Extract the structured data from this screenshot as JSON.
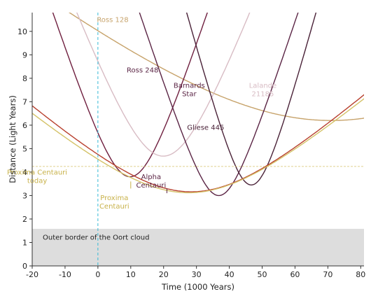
{
  "chart_data": {
    "type": "line",
    "title": "",
    "xlabel": "Time (1000 Years)",
    "ylabel": "Distance (Light Years)",
    "xlim": [
      -20,
      81
    ],
    "ylim": [
      0,
      10.8
    ],
    "x_ticks": [
      -20,
      -10,
      0,
      10,
      20,
      30,
      40,
      50,
      60,
      70,
      80
    ],
    "y_ticks": [
      0,
      1,
      2,
      3,
      4,
      5,
      6,
      7,
      8,
      9,
      10
    ],
    "today_x": 0,
    "oort_cloud": {
      "label": "Outer border of the Oort cloud",
      "y_max": 1.58
    },
    "proxima_today_level": 4.24,
    "series": [
      {
        "name": "Ross 128",
        "color": "#c7a36b",
        "t_min": 71,
        "d_min": 6.2,
        "speed": 0.111,
        "label": [
          "Ross 128"
        ],
        "label_at": [
          71,
          0.15
        ]
      },
      {
        "name": "Barnards Star",
        "color": "#6f1f3f",
        "t_min": 9.8,
        "d_min": 3.8,
        "speed": 0.43,
        "label": [
          "Barnards",
          "Star"
        ],
        "label_at": [
          27.8,
          7.6
        ]
      },
      {
        "name": "Lalande 21185",
        "color": "#d8bcc4",
        "t_min": 19.9,
        "d_min": 4.68,
        "speed": 0.37,
        "label": [
          "Lalande",
          "21185"
        ],
        "label_at": [
          50.2,
          7.6
        ]
      },
      {
        "name": "Ross 248",
        "color": "#5a2444",
        "t_min": 36.8,
        "d_min": 3.0,
        "speed": 0.43,
        "label": [
          "Ross 248"
        ],
        "label_at": [
          13.6,
          8.25
        ]
      },
      {
        "name": "Gliese 445",
        "color": "#4a2238",
        "t_min": 46.7,
        "d_min": 3.45,
        "speed": 0.52,
        "label": [
          "Gliese 445"
        ],
        "label_at": [
          32.8,
          5.8
        ]
      },
      {
        "name": "Alpha Centauri",
        "color": "#b8402e",
        "t_min": 28.4,
        "d_min": 3.16,
        "speed": 0.125,
        "label": [
          "Alpha",
          "Centauri"
        ],
        "label_at": [
          16.2,
          3.7
        ]
      },
      {
        "name": "Proxima Centauri",
        "color": "#d4c268",
        "t_min": 27.6,
        "d_min": 3.12,
        "speed": 0.12,
        "label": [
          "Proxima",
          "Centauri"
        ],
        "label_at": [
          5.0,
          2.8
        ],
        "today_label": [
          "Proxima Centauri",
          "today"
        ],
        "today_label_at": [
          -18.5,
          3.9
        ]
      }
    ]
  }
}
